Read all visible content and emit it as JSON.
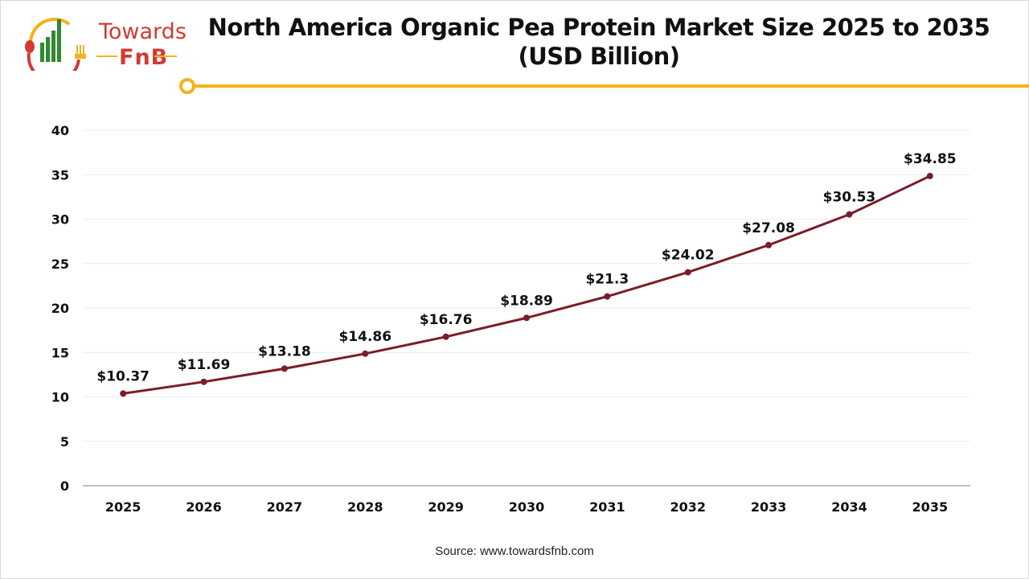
{
  "logo": {
    "line1": "Towards",
    "line2": "FnB"
  },
  "chart_data": {
    "type": "line",
    "title": "North America Organic Pea Protein Market Size 2025 to 2035",
    "subtitle": "(USD Billion)",
    "categories": [
      "2025",
      "2026",
      "2027",
      "2028",
      "2029",
      "2030",
      "2031",
      "2032",
      "2033",
      "2034",
      "2035"
    ],
    "values": [
      10.37,
      11.69,
      13.18,
      14.86,
      16.76,
      18.89,
      21.3,
      24.02,
      27.08,
      30.53,
      34.85
    ],
    "data_labels": [
      "$10.37",
      "$11.69",
      "$13.18",
      "$14.86",
      "$16.76",
      "$18.89",
      "$21.3",
      "$24.02",
      "$27.08",
      "$30.53",
      "$34.85"
    ],
    "ylim": [
      0,
      40
    ],
    "yticks": [
      0,
      5,
      10,
      15,
      20,
      25,
      30,
      35,
      40
    ],
    "grid": true,
    "xlabel": "",
    "ylabel": "",
    "colors": {
      "line": "#7b1c2a",
      "accent": "#f2b21b",
      "grid": "#ececec",
      "axis": "#bfbfbf"
    }
  },
  "source": "Source: www.towardsfnb.com"
}
